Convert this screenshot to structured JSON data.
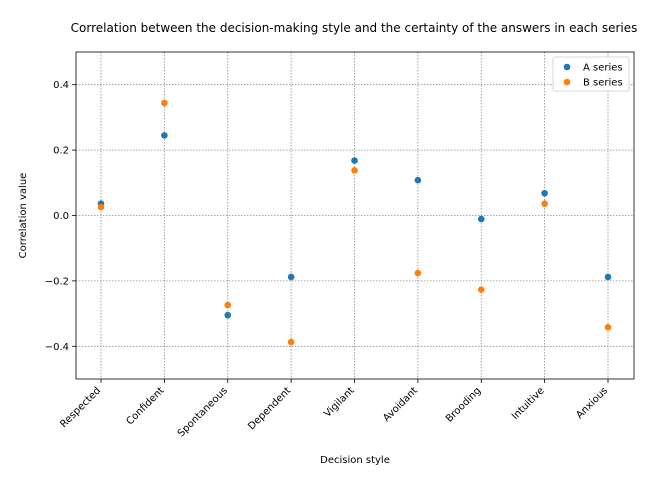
{
  "chart_data": {
    "type": "scatter",
    "title": "Correlation between the decision-making style and the certainty of the answers in each series",
    "xlabel": "Decision style",
    "ylabel": "Correlation value",
    "categories": [
      "Respected",
      "Confident",
      "Spontaneous",
      "Dependent",
      "Vigilant",
      "Avoidant",
      "Brooding",
      "Intuitive",
      "Anxious"
    ],
    "ylim": [
      -0.5,
      0.5
    ],
    "yticks": [
      -0.4,
      -0.2,
      0.0,
      0.2,
      0.4
    ],
    "ytick_labels": [
      "−0.4",
      "−0.2",
      "0.0",
      "0.2",
      "0.4"
    ],
    "grid": true,
    "legend_position": "top-right",
    "series": [
      {
        "name": "A series",
        "color": "#1f77b4",
        "values": [
          0.036,
          0.245,
          -0.305,
          -0.188,
          0.168,
          0.108,
          -0.011,
          0.068,
          -0.188
        ]
      },
      {
        "name": "B series",
        "color": "#ff7f0e",
        "values": [
          0.026,
          0.344,
          -0.274,
          -0.387,
          0.138,
          -0.176,
          -0.227,
          0.036,
          -0.342
        ]
      }
    ]
  }
}
